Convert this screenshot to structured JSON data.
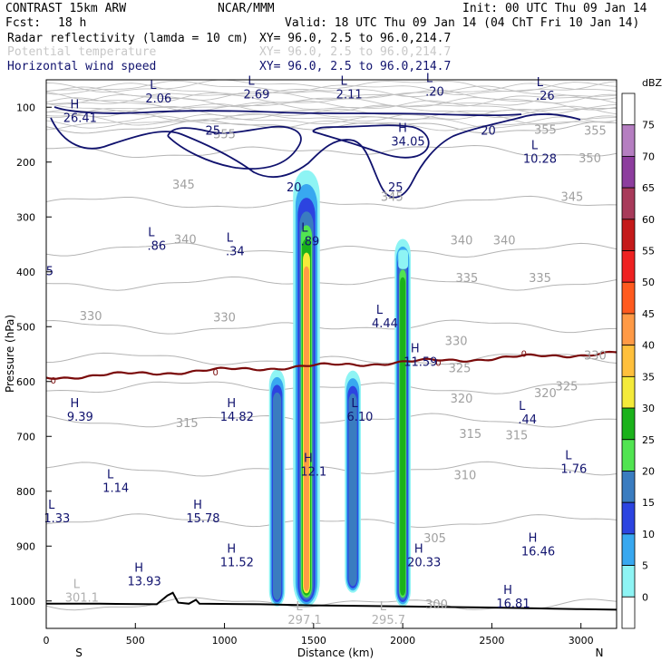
{
  "header": {
    "model": "CONTRAST 15km ARW",
    "org": "NCAR/MMM",
    "init": "Init: 00 UTC Thu 09 Jan 14",
    "fcst_label": "Fcst:",
    "fcst_value": "18 h",
    "valid": "Valid: 18 UTC Thu 09 Jan 14 (04 ChT Fri 10 Jan 14)",
    "fields": [
      {
        "name": "Radar reflectivity (lamda = 10 cm)",
        "xy": "XY=  96.0,  2.5 to  96.0,214.7",
        "color": "#000000"
      },
      {
        "name": "Potential temperature",
        "xy": "XY=  96.0,  2.5 to  96.0,214.7",
        "color": "#c8c8c8"
      },
      {
        "name": "Horizontal wind speed",
        "xy": "XY=  96.0,  2.5 to  96.0,214.7",
        "color": "#10126e"
      }
    ]
  },
  "chart_data": {
    "type": "heatmap",
    "xlabel": "Distance (km)",
    "ylabel": "Pressure (hPa)",
    "xlim": [
      0,
      3200
    ],
    "ylim": [
      1050,
      50
    ],
    "x_ticks": [
      0,
      500,
      1000,
      1500,
      2000,
      2500,
      3000
    ],
    "x_tick_labels": [
      "0",
      "500",
      "1000",
      "1500",
      "2000",
      "2500",
      "3000"
    ],
    "y_ticks": [
      100,
      200,
      300,
      400,
      500,
      600,
      700,
      800,
      900,
      1000
    ],
    "y_tick_labels": [
      "100",
      "200",
      "300",
      "400",
      "500",
      "600",
      "700",
      "800",
      "900",
      "1000"
    ],
    "x_end_labels": {
      "left": "S",
      "right": "N"
    },
    "colorbar": {
      "unit": "dBZ",
      "levels": [
        75,
        70,
        65,
        60,
        55,
        50,
        45,
        40,
        35,
        30,
        25,
        20,
        15,
        10,
        5,
        0
      ],
      "colors": [
        "#ffffff",
        "#b57ec1",
        "#8d3d9e",
        "#a83a5a",
        "#c41a1a",
        "#ee2222",
        "#ff5a1e",
        "#ff9a46",
        "#ffc03c",
        "#f4ea3a",
        "#1bb21b",
        "#51e451",
        "#3a7cc0",
        "#2c44e0",
        "#38a8f0",
        "#8ef4f4",
        "#ffffff"
      ]
    },
    "reflectivity_columns": [
      {
        "x": 1295,
        "top": 578,
        "bottom": 1010,
        "max_dbz": 20
      },
      {
        "x": 1460,
        "top": 215,
        "bottom": 1010,
        "max_dbz": 40
      },
      {
        "x": 1720,
        "top": 580,
        "bottom": 985,
        "max_dbz": 20
      },
      {
        "x": 2000,
        "top": 340,
        "bottom": 1010,
        "max_dbz": 30
      }
    ],
    "theta_contours": [
      {
        "value": 300,
        "p": 1005
      },
      {
        "value": 305,
        "p": 855
      },
      {
        "value": 310,
        "p": 760
      },
      {
        "value": 315,
        "p": 670
      },
      {
        "value": 320,
        "p": 610
      },
      {
        "value": 325,
        "p": 560
      },
      {
        "value": 330,
        "p": 500
      },
      {
        "value": 335,
        "p": 420
      },
      {
        "value": 340,
        "p": 360
      },
      {
        "value": 345,
        "p": 275
      },
      {
        "value": 350,
        "p": 180
      },
      {
        "value": 355,
        "p": 135
      }
    ],
    "theta_labels": [
      {
        "text": "345",
        "x": 770,
        "p": 240
      },
      {
        "text": "345",
        "x": 1940,
        "p": 262
      },
      {
        "text": "345",
        "x": 2950,
        "p": 262
      },
      {
        "text": "340",
        "x": 780,
        "p": 340
      },
      {
        "text": "340",
        "x": 2330,
        "p": 342
      },
      {
        "text": "340",
        "x": 2570,
        "p": 342
      },
      {
        "text": "335",
        "x": 2360,
        "p": 410
      },
      {
        "text": "335",
        "x": 2770,
        "p": 410
      },
      {
        "text": "330",
        "x": 250,
        "p": 480
      },
      {
        "text": "330",
        "x": 1000,
        "p": 482
      },
      {
        "text": "330",
        "x": 2300,
        "p": 525
      },
      {
        "text": "330",
        "x": 3080,
        "p": 552
      },
      {
        "text": "325",
        "x": 2320,
        "p": 575
      },
      {
        "text": "325",
        "x": 2920,
        "p": 608
      },
      {
        "text": "320",
        "x": 2330,
        "p": 630
      },
      {
        "text": "320",
        "x": 2800,
        "p": 620
      },
      {
        "text": "315",
        "x": 790,
        "p": 675
      },
      {
        "text": "315",
        "x": 2380,
        "p": 695
      },
      {
        "text": "315",
        "x": 2640,
        "p": 697
      },
      {
        "text": "310",
        "x": 2350,
        "p": 770
      },
      {
        "text": "305",
        "x": 2180,
        "p": 885
      },
      {
        "text": "300",
        "x": 2190,
        "p": 1005
      },
      {
        "text": "355",
        "x": 1000,
        "p": 148
      },
      {
        "text": "355",
        "x": 2800,
        "p": 140
      },
      {
        "text": "355",
        "x": 3080,
        "p": 142
      },
      {
        "text": "350",
        "x": 3050,
        "p": 192
      }
    ],
    "wind_contour_labels": [
      {
        "text": "25",
        "x": 935,
        "p": 142
      },
      {
        "text": "20",
        "x": 1390,
        "p": 245
      },
      {
        "text": "25",
        "x": 1960,
        "p": 245
      },
      {
        "text": "20",
        "x": 2480,
        "p": 142
      }
    ],
    "freezing_level": {
      "label": "0",
      "p": 575
    },
    "hl_labels": [
      {
        "type": "H",
        "value": "26.41",
        "x": 190,
        "p": 115
      },
      {
        "type": "L",
        "value": "2.06",
        "x": 630,
        "p": 80
      },
      {
        "type": "L",
        "value": "2.69",
        "x": 1180,
        "p": 72
      },
      {
        "type": "L",
        "value": "2.11",
        "x": 1700,
        "p": 72
      },
      {
        "type": "L",
        "value": ".20",
        "x": 2180,
        "p": 67
      },
      {
        "type": "L",
        "value": ".26",
        "x": 2800,
        "p": 75
      },
      {
        "type": "H",
        "value": "34.05",
        "x": 2030,
        "p": 158
      },
      {
        "type": "L",
        "value": "10.28",
        "x": 2770,
        "p": 190
      },
      {
        "type": "L",
        "value": ".86",
        "x": 620,
        "p": 348
      },
      {
        "type": "L",
        "value": ".34",
        "x": 1060,
        "p": 358
      },
      {
        "type": "L",
        "value": ".89",
        "x": 1480,
        "p": 340
      },
      {
        "type": "L",
        "value": "4.44",
        "x": 1900,
        "p": 490
      },
      {
        "type": "H",
        "value": "11.59",
        "x": 2100,
        "p": 560
      },
      {
        "type": "H",
        "value": "9.39",
        "x": 190,
        "p": 660
      },
      {
        "type": "H",
        "value": "14.82",
        "x": 1070,
        "p": 660
      },
      {
        "type": "L",
        "value": "6.10",
        "x": 1760,
        "p": 660
      },
      {
        "type": "L",
        "value": ".44",
        "x": 2700,
        "p": 665
      },
      {
        "type": "H",
        "value": "12.1",
        "x": 1500,
        "p": 760
      },
      {
        "type": "L",
        "value": "1.76",
        "x": 2960,
        "p": 755
      },
      {
        "type": "L",
        "value": "1.14",
        "x": 390,
        "p": 790
      },
      {
        "type": "L",
        "value": "1.33",
        "x": 60,
        "p": 845
      },
      {
        "type": "H",
        "value": "15.78",
        "x": 880,
        "p": 845
      },
      {
        "type": "H",
        "value": "11.52",
        "x": 1070,
        "p": 925
      },
      {
        "type": "H",
        "value": "20.33",
        "x": 2120,
        "p": 925
      },
      {
        "type": "H",
        "value": "16.46",
        "x": 2760,
        "p": 905
      },
      {
        "type": "H",
        "value": "13.93",
        "x": 550,
        "p": 960
      },
      {
        "type": "H",
        "value": "16.81",
        "x": 2620,
        "p": 1000
      },
      {
        "type": "L",
        "value": "301.1",
        "x": 200,
        "p": 990,
        "gray": true
      },
      {
        "type": "L",
        "value": "297.1",
        "x": 1450,
        "p": 1030,
        "gray": true
      },
      {
        "type": "L",
        "value": "295.7",
        "x": 1920,
        "p": 1030,
        "gray": true
      },
      {
        "type": "L",
        "value": "5",
        "x": 20,
        "p": 395
      }
    ]
  }
}
